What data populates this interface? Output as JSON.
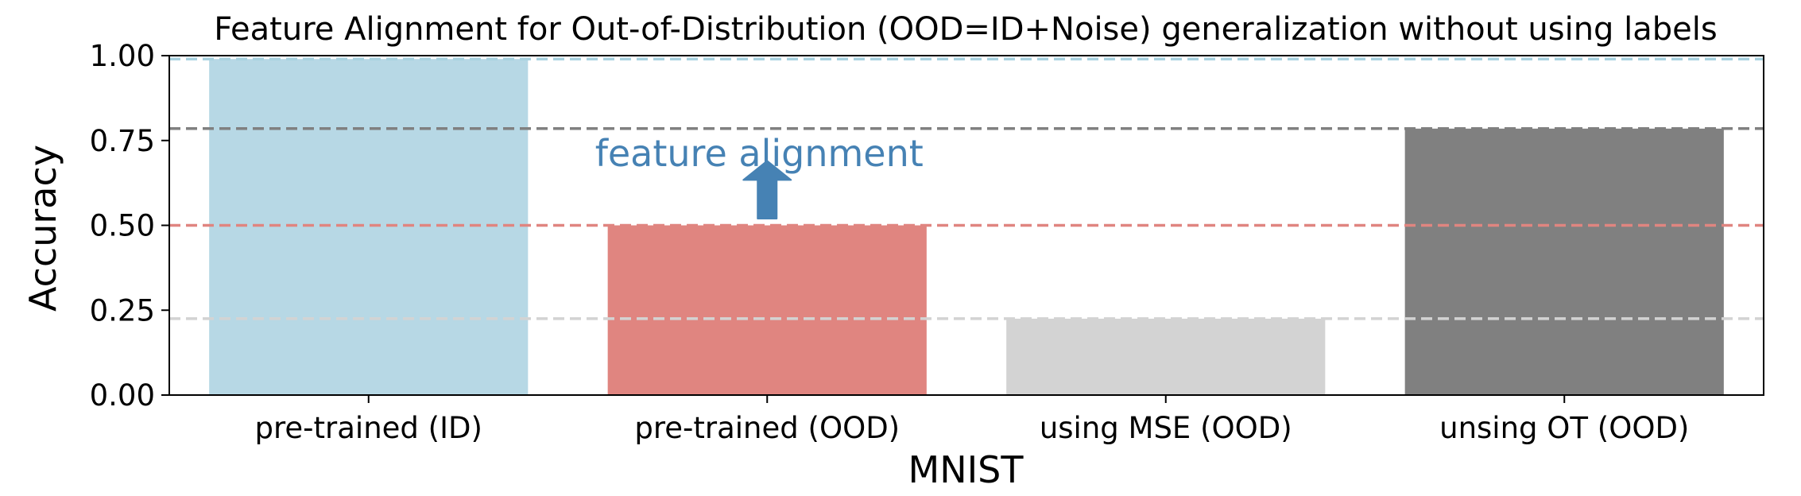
{
  "chart_data": {
    "type": "bar",
    "title": "Feature Alignment for Out-of-Distribution (OOD=ID+Noise) generalization without using labels",
    "xlabel": "MNIST",
    "ylabel": "Accuracy",
    "ylim": [
      0,
      1
    ],
    "yticks": [
      "0.00",
      "0.25",
      "0.50",
      "0.75",
      "1.00"
    ],
    "grid": false,
    "categories": [
      "pre-trained (ID)",
      "pre-trained (OOD)",
      "using MSE (OOD)",
      "unsing OT (OOD)"
    ],
    "values": [
      0.99,
      0.5,
      0.225,
      0.785
    ],
    "colors": [
      "#b7d8e5",
      "#e08580",
      "#d3d3d3",
      "#808080"
    ],
    "reference_lines": [
      {
        "value": 0.99,
        "color": "#a8d2e0",
        "style": "dashed"
      },
      {
        "value": 0.785,
        "color": "#808080",
        "style": "dashed"
      },
      {
        "value": 0.5,
        "color": "#e08580",
        "style": "dashed"
      },
      {
        "value": 0.225,
        "color": "#d3d3d3",
        "style": "dashed"
      }
    ],
    "annotation": {
      "text": "feature alignment",
      "color": "#4682b4",
      "arrow_icon": "up-arrow-icon",
      "from_value": 0.52,
      "to_value": 0.69
    }
  }
}
